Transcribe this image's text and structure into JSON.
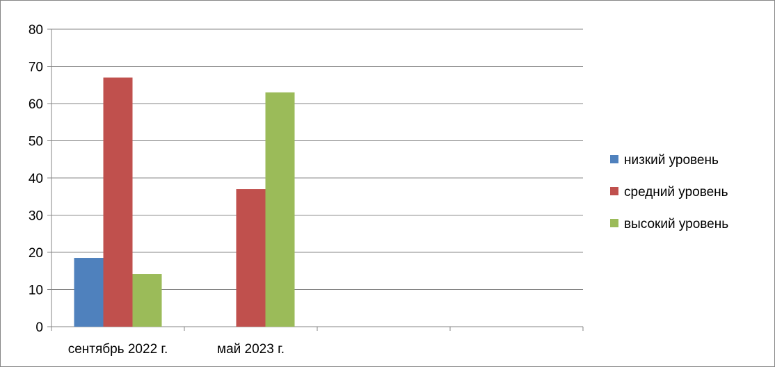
{
  "chart_data": {
    "type": "bar",
    "categories": [
      "сентябрь 2022 г.",
      "май 2023 г.",
      "",
      ""
    ],
    "series": [
      {
        "name": "низкий уровень",
        "values": [
          18.5,
          0,
          0,
          0
        ],
        "color": "#4F81BD"
      },
      {
        "name": "средний уровень",
        "values": [
          67,
          37,
          0,
          0
        ],
        "color": "#C0504D"
      },
      {
        "name": "высокий уровень",
        "values": [
          14.2,
          63,
          0,
          0
        ],
        "color": "#9BBB59"
      }
    ],
    "yticks": [
      "0",
      "10",
      "20",
      "30",
      "40",
      "50",
      "60",
      "70",
      "80"
    ],
    "ylim": [
      0,
      80
    ],
    "grid": true,
    "legend_position": "right",
    "title": "",
    "xlabel": "",
    "ylabel": ""
  }
}
